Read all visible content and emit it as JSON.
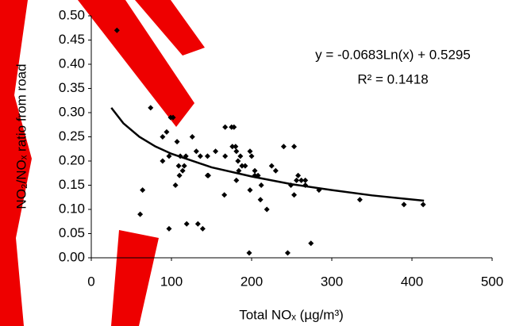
{
  "chart_data": {
    "type": "scatter",
    "x_label": "Total NOₓ (µg/m³)",
    "y_label": "NO₂/NOₓ ratio from road",
    "annotations": [
      "y = -0.0683Ln(x) + 0.5295",
      "R² = 0.1418"
    ],
    "color": "#000000",
    "x": [
      32,
      74,
      99,
      102,
      89,
      94,
      107,
      89,
      97,
      111,
      118,
      126,
      131,
      136,
      145,
      155,
      109,
      114,
      110,
      105,
      116,
      64,
      61,
      97,
      119,
      133,
      139,
      146,
      145,
      167,
      166,
      167,
      175,
      178,
      176,
      180,
      181,
      183,
      186,
      188,
      181,
      184,
      192,
      198,
      200,
      204,
      204,
      198,
      208,
      212,
      219,
      211,
      225,
      230,
      240,
      253,
      249,
      256,
      258,
      262,
      267,
      253,
      267,
      284,
      197,
      245,
      274,
      335,
      390,
      414
    ],
    "values": [
      0.47,
      0.31,
      0.29,
      0.29,
      0.25,
      0.26,
      0.24,
      0.2,
      0.21,
      0.21,
      0.21,
      0.25,
      0.22,
      0.21,
      0.21,
      0.22,
      0.19,
      0.18,
      0.17,
      0.15,
      0.19,
      0.14,
      0.09,
      0.06,
      0.07,
      0.07,
      0.06,
      0.17,
      0.17,
      0.21,
      0.13,
      0.27,
      0.27,
      0.27,
      0.23,
      0.23,
      0.22,
      0.2,
      0.21,
      0.19,
      0.16,
      0.18,
      0.19,
      0.22,
      0.21,
      0.18,
      0.17,
      0.14,
      0.17,
      0.15,
      0.1,
      0.12,
      0.19,
      0.18,
      0.23,
      0.23,
      0.15,
      0.16,
      0.17,
      0.16,
      0.16,
      0.13,
      0.15,
      0.14,
      0.01,
      0.01,
      0.03,
      0.12,
      0.11,
      0.11
    ],
    "trendline": {
      "x": [
        25,
        40,
        60,
        80,
        100,
        150,
        200,
        250,
        300,
        350,
        415
      ],
      "values": [
        0.31,
        0.278,
        0.25,
        0.23,
        0.215,
        0.187,
        0.168,
        0.152,
        0.14,
        0.129,
        0.118
      ]
    },
    "xlim": [
      0,
      500
    ],
    "xticks": [
      0,
      100,
      200,
      300,
      400,
      500
    ],
    "ylim": [
      0,
      0.5
    ],
    "yticks": [
      {
        "value": 0,
        "label": "0.00"
      },
      {
        "value": 0.05,
        "label": "0.05"
      },
      {
        "value": 0.1,
        "label": "0.10"
      },
      {
        "value": 0.15,
        "label": "0.15"
      },
      {
        "value": 0.2,
        "label": "0.20"
      },
      {
        "value": 0.25,
        "label": "0.25"
      },
      {
        "value": 0.3,
        "label": "0.30"
      },
      {
        "value": 0.35,
        "label": "0.35"
      },
      {
        "value": 0.4,
        "label": "0.40"
      },
      {
        "value": 0.45,
        "label": "0.45"
      },
      {
        "value": 0.5,
        "label": "0.50"
      }
    ],
    "grid": false
  }
}
